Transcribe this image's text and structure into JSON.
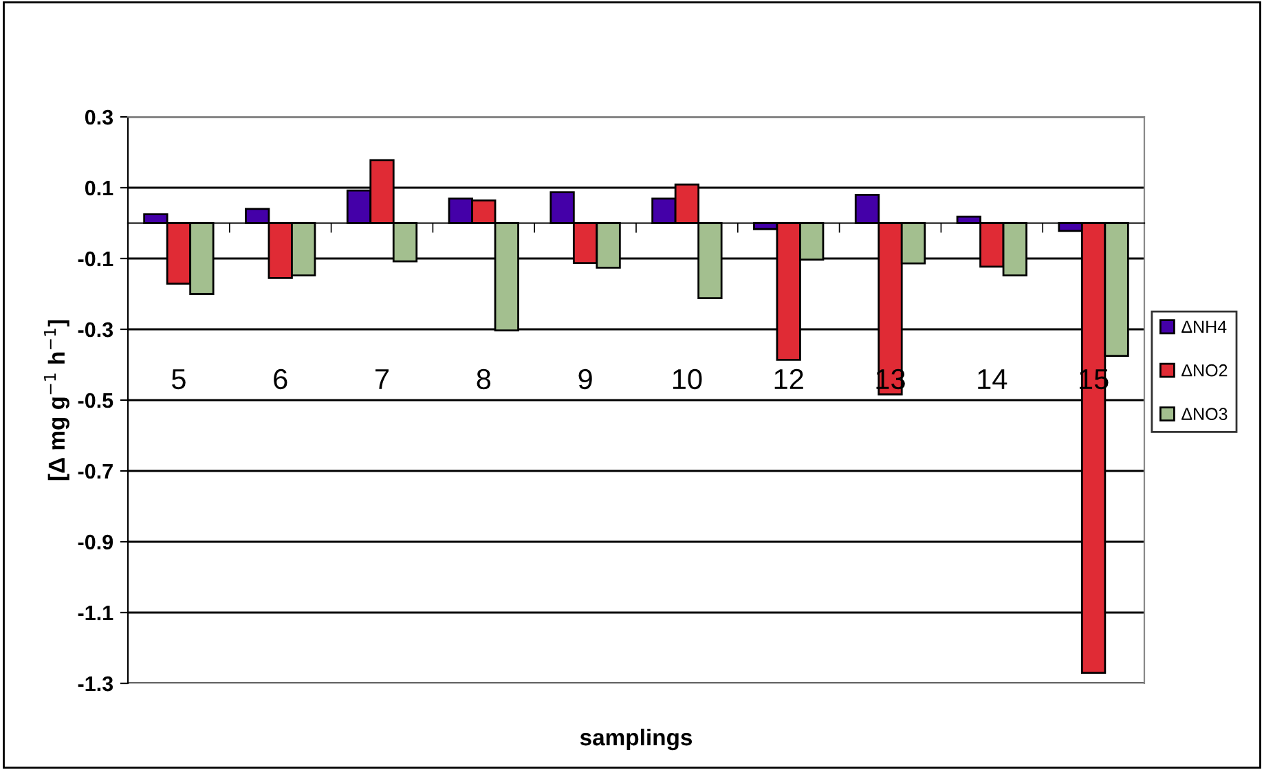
{
  "chart_data": {
    "type": "bar",
    "xlabel": "samplings",
    "ylabel": "[Δ mg g$^{−1}$ h$^{−1}$]",
    "categories": [
      "5",
      "6",
      "7",
      "8",
      "9",
      "10",
      "12",
      "13",
      "14",
      "15"
    ],
    "series": [
      {
        "name": "ΔNH4",
        "color": "#4400a8",
        "values": [
          0.025,
          0.04,
          0.092,
          0.069,
          0.087,
          0.069,
          -0.017,
          0.08,
          0.018,
          -0.022
        ]
      },
      {
        "name": "ΔNO2",
        "color": "#e02b35",
        "values": [
          -0.171,
          -0.155,
          0.178,
          0.064,
          -0.113,
          0.109,
          -0.386,
          -0.484,
          -0.123,
          -1.27
        ]
      },
      {
        "name": "ΔNO3",
        "color": "#a3bf8f",
        "values": [
          -0.2,
          -0.148,
          -0.108,
          -0.303,
          -0.126,
          -0.212,
          -0.103,
          -0.114,
          -0.148,
          -0.375
        ]
      }
    ],
    "ylim": [
      -1.3,
      0.3
    ],
    "yticks": [
      -1.3,
      -1.1,
      -0.9,
      -0.7,
      -0.5,
      -0.3,
      -0.1,
      0.1,
      0.3
    ],
    "grid": "y",
    "legend": "right"
  }
}
